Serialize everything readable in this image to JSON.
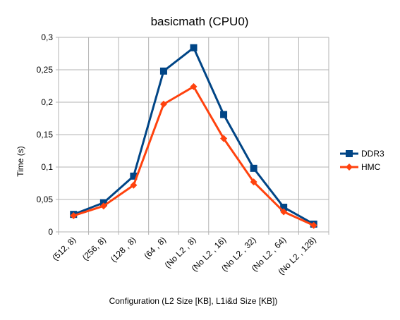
{
  "chart_data": {
    "type": "line",
    "title": "basicmath (CPU0)",
    "xlabel": "Configuration (L2 Size [KB], L1i&d Size [KB])",
    "ylabel": "Time (s)",
    "categories": [
      "(512, 8)",
      "(256, 8)",
      "(128 , 8)",
      "(64 , 8)",
      "(No L2 , 8)",
      "(No L2 , 16)",
      "(No L2 , 32)",
      "(No L2 , 64)",
      "(No L2 , 128)"
    ],
    "ylim": [
      0,
      0.3
    ],
    "yticks": [
      0,
      0.05,
      0.1,
      0.15,
      0.2,
      0.25,
      0.3
    ],
    "ytick_labels": [
      "0",
      "0,05",
      "0,1",
      "0,15",
      "0,2",
      "0,25",
      "0,3"
    ],
    "grid": true,
    "legend_position": "right",
    "series": [
      {
        "name": "DDR3",
        "color": "#004586",
        "marker": "square",
        "values": [
          0.027,
          0.045,
          0.086,
          0.248,
          0.284,
          0.181,
          0.098,
          0.038,
          0.012
        ]
      },
      {
        "name": "HMC",
        "color": "#ff420e",
        "marker": "diamond",
        "values": [
          0.025,
          0.04,
          0.072,
          0.197,
          0.224,
          0.144,
          0.077,
          0.031,
          0.01
        ]
      }
    ]
  }
}
